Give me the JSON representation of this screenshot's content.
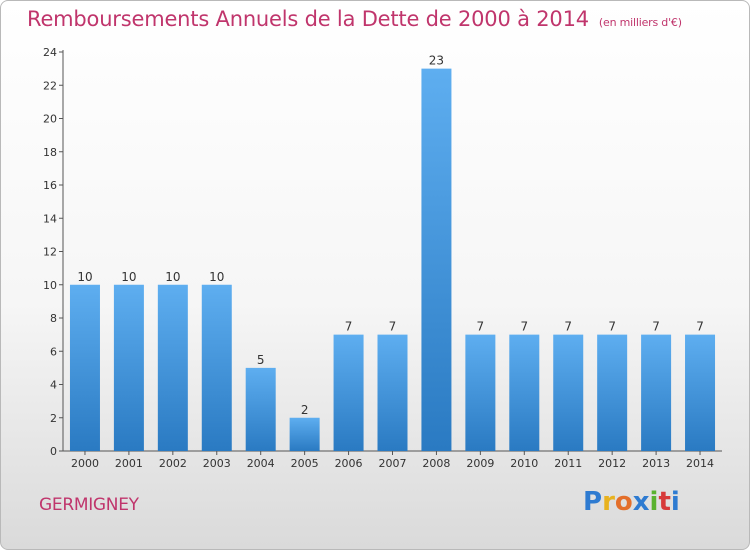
{
  "header": {
    "title": "Remboursements Annuels de la Dette de 2000 à 2014",
    "subtitle": "(en milliers d'€)"
  },
  "footer": {
    "commune": "GERMIGNEY",
    "logo_letters": [
      "P",
      "r",
      "o",
      "x",
      "i",
      "t",
      "i"
    ],
    "logo_colors": [
      "#2e7bd1",
      "#e8b21f",
      "#e36f2b",
      "#2e7bd1",
      "#5ab22f",
      "#d73a3a",
      "#2e7bd1"
    ]
  },
  "colors": {
    "title": "#c0356c",
    "bar_top": "#5eaef0",
    "bar_bottom": "#2a7ac2"
  },
  "chart_data": {
    "type": "bar",
    "title": "Remboursements Annuels de la Dette de 2000 à 2014",
    "xlabel": "",
    "ylabel": "",
    "categories": [
      "2000",
      "2001",
      "2002",
      "2003",
      "2004",
      "2005",
      "2006",
      "2007",
      "2008",
      "2009",
      "2010",
      "2011",
      "2012",
      "2013",
      "2014"
    ],
    "values": [
      10,
      10,
      10,
      10,
      5,
      2,
      7,
      7,
      23,
      7,
      7,
      7,
      7,
      7,
      7
    ],
    "ylim": [
      0,
      24
    ],
    "yticks": [
      0,
      2,
      4,
      6,
      8,
      10,
      12,
      14,
      16,
      18,
      20,
      22,
      24
    ],
    "grid": false,
    "data_labels": true
  }
}
